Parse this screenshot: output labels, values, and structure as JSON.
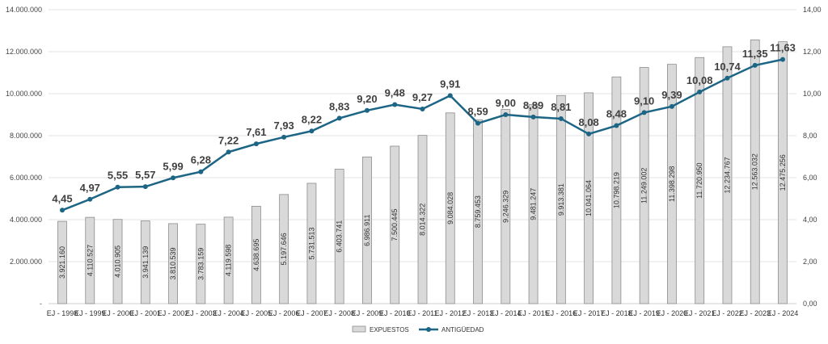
{
  "chart_data": {
    "type": "bar+line",
    "categories": [
      "EJ - 1998",
      "EJ - 1999",
      "EJ - 2000",
      "EJ - 2001",
      "EJ - 2002",
      "EJ - 2003",
      "EJ - 2004",
      "EJ - 2005",
      "EJ - 2006",
      "EJ - 2007",
      "EJ - 2008",
      "EJ - 2009",
      "EJ - 2010",
      "EJ - 2011",
      "EJ - 2012",
      "EJ - 2013",
      "EJ - 2014",
      "EJ - 2015",
      "EJ - 2016",
      "EJ - 2017",
      "EJ - 2018",
      "EJ - 2019",
      "EJ - 2020",
      "EJ - 2021",
      "EJ - 2022",
      "EJ - 2023",
      "EJ - 2024"
    ],
    "series": [
      {
        "name": "EXPUESTOS",
        "type": "bar",
        "axis": "left",
        "color": "#d9d9d9",
        "values": [
          3921160,
          4110527,
          4010905,
          3941139,
          3810539,
          3783159,
          4119598,
          4638695,
          5197646,
          5731513,
          6403741,
          6986911,
          7500445,
          8014322,
          9084028,
          8759453,
          9246329,
          9481247,
          9913381,
          10041064,
          10798219,
          11249002,
          11398298,
          11720950,
          12234767,
          12563032,
          12475256
        ],
        "labels": [
          "3.921.160",
          "4.110.527",
          "4.010.905",
          "3.941.139",
          "3.810.539",
          "3.783.159",
          "4.119.598",
          "4.638.695",
          "5.197.646",
          "5.731.513",
          "6.403.741",
          "6.986.911",
          "7.500.445",
          "8.014.322",
          "9.084.028",
          "8.759.453",
          "9.246.329",
          "9.481.247",
          "9.913.381",
          "10.041.064",
          "10.798.219",
          "11.249.002",
          "11.398.298",
          "11.720.950",
          "12.234.767",
          "12.563.032",
          "12.475.256"
        ]
      },
      {
        "name": "ANTIGÜEDAD",
        "type": "line",
        "axis": "right",
        "color": "#1d6585",
        "values": [
          4.45,
          4.97,
          5.55,
          5.57,
          5.99,
          6.28,
          7.22,
          7.61,
          7.93,
          8.22,
          8.83,
          9.2,
          9.48,
          9.27,
          9.91,
          8.59,
          9.0,
          8.89,
          8.81,
          8.08,
          8.48,
          9.1,
          9.39,
          10.08,
          10.74,
          11.35,
          11.63
        ],
        "labels": [
          "4,45",
          "4,97",
          "5,55",
          "5,57",
          "5,99",
          "6,28",
          "7,22",
          "7,61",
          "7,93",
          "8,22",
          "8,83",
          "9,20",
          "9,48",
          "9,27",
          "9,91",
          "8,59",
          "9,00",
          "8,89",
          "8,81",
          "8,08",
          "8,48",
          "9,10",
          "9,39",
          "10,08",
          "10,74",
          "11,35",
          "11,63"
        ]
      }
    ],
    "y_left": {
      "range": [
        0,
        14000000
      ],
      "ticks": [
        "-",
        "2.000.000",
        "4.000.000",
        "6.000.000",
        "8.000.000",
        "10.000.000",
        "12.000.000",
        "14.000.000"
      ]
    },
    "y_right": {
      "range": [
        0,
        14
      ],
      "ticks": [
        "0,00",
        "2,00",
        "4,00",
        "6,00",
        "8,00",
        "10,00",
        "12,00",
        "14,00"
      ]
    },
    "grid": true,
    "legend_position": "bottom"
  }
}
